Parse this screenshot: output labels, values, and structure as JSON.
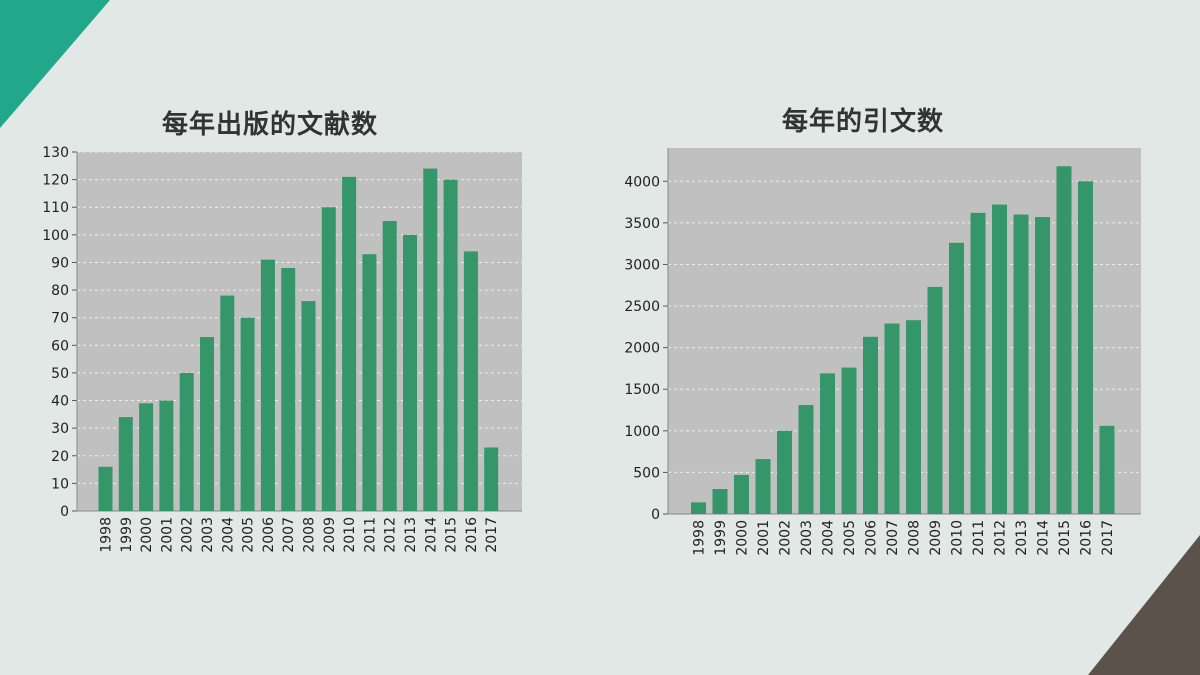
{
  "colors": {
    "background": "#e2e8e5",
    "plot_background": "#c0c0c0",
    "bar": "#35966a",
    "gridline": "#ececec",
    "corner_top_left": "#21a88a",
    "corner_bottom_right": "#5a524b"
  },
  "chart_data": [
    {
      "type": "bar",
      "title": "每年出版的文献数",
      "xlabel": "",
      "ylabel": "",
      "categories": [
        "1998",
        "1999",
        "2000",
        "2001",
        "2002",
        "2003",
        "2004",
        "2005",
        "2006",
        "2007",
        "2008",
        "2009",
        "2010",
        "2011",
        "2012",
        "2013",
        "2014",
        "2015",
        "2016",
        "2017"
      ],
      "values": [
        16,
        34,
        39,
        40,
        50,
        63,
        78,
        70,
        91,
        88,
        76,
        110,
        121,
        93,
        105,
        100,
        124,
        120,
        94,
        23
      ],
      "ylim": [
        0,
        130
      ],
      "yticks": [
        "0",
        "10",
        "20",
        "30",
        "40",
        "50",
        "60",
        "70",
        "80",
        "90",
        "100",
        "110",
        "120",
        "130"
      ],
      "grid": true
    },
    {
      "type": "bar",
      "title": "每年的引文数",
      "xlabel": "",
      "ylabel": "",
      "categories": [
        "1998",
        "1999",
        "2000",
        "2001",
        "2002",
        "2003",
        "2004",
        "2005",
        "2006",
        "2007",
        "2008",
        "2009",
        "2010",
        "2011",
        "2012",
        "2013",
        "2014",
        "2015",
        "2016",
        "2017"
      ],
      "values": [
        140,
        300,
        470,
        660,
        1000,
        1310,
        1690,
        1760,
        2130,
        2290,
        2330,
        2730,
        3260,
        3620,
        3720,
        3600,
        3570,
        4180,
        4000,
        1060
      ],
      "ylim": [
        0,
        4400
      ],
      "yticks": [
        "0",
        "500",
        "1000",
        "1500",
        "2000",
        "2500",
        "3000",
        "3500",
        "4000"
      ],
      "grid": true
    }
  ]
}
